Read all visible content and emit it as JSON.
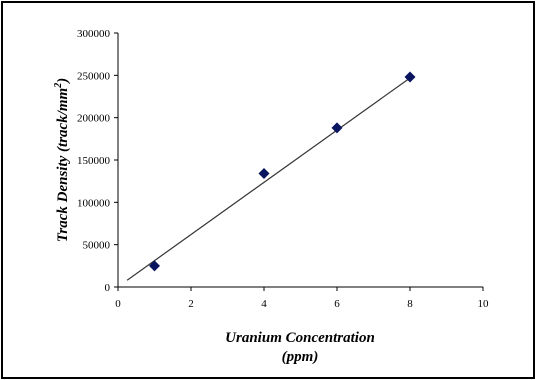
{
  "chart_data": {
    "type": "scatter",
    "title": "",
    "xlabel_line1": "Uranium Concentration",
    "xlabel_line2": "(ppm)",
    "ylabel_main": "Track Density (track/mm",
    "ylabel_sup": "2",
    "ylabel_end": ")",
    "xlim": [
      0,
      10
    ],
    "ylim": [
      0,
      300000
    ],
    "x_ticks": [
      "0",
      "2",
      "4",
      "6",
      "8",
      "10"
    ],
    "y_ticks": [
      "0",
      "50000",
      "100000",
      "150000",
      "200000",
      "250000",
      "300000"
    ],
    "y_tick_display": [
      "0",
      "50000",
      "?00000",
      "?50000",
      "?00000",
      "?50000",
      "?00000"
    ],
    "points": [
      {
        "x": 1,
        "y": 25000
      },
      {
        "x": 4,
        "y": 134000
      },
      {
        "x": 6,
        "y": 188000
      },
      {
        "x": 8,
        "y": 248000
      }
    ],
    "trendline": {
      "x": [
        0.25,
        8.1
      ],
      "y": [
        8000,
        250000
      ]
    },
    "grid": false,
    "legend": "none",
    "marker_color": "#0a1560",
    "line_color": "#333333"
  }
}
